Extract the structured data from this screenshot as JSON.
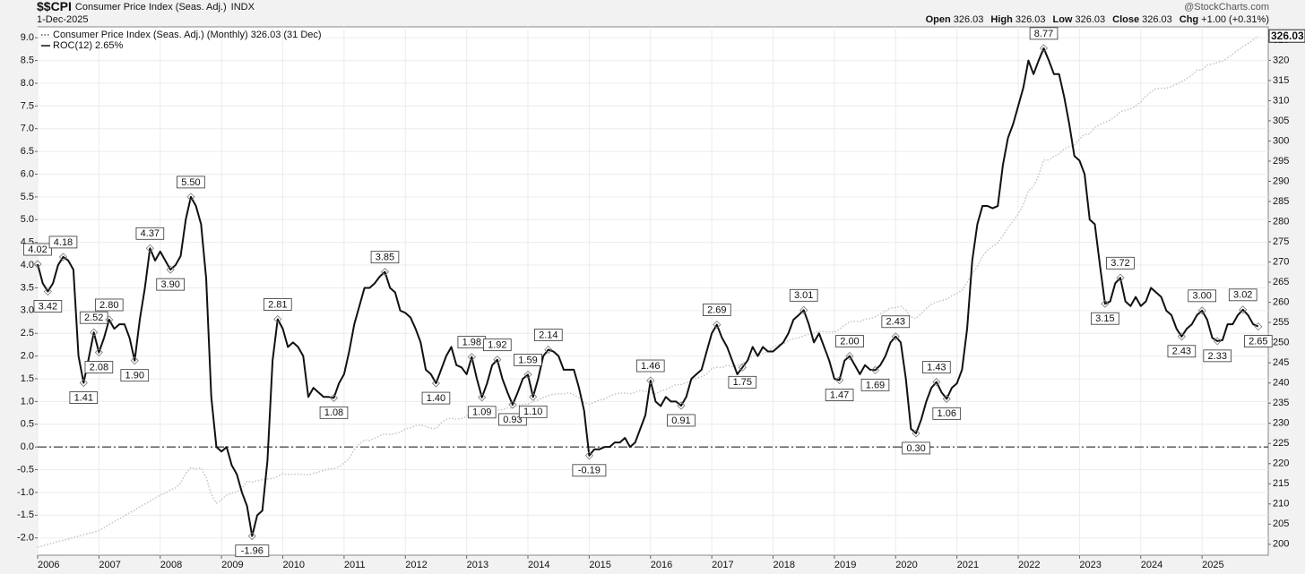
{
  "header": {
    "symbol": "$$CPI",
    "name": "Consumer Price Index (Seas. Adj.)",
    "exchange": "INDX",
    "date": "1-Dec-2025",
    "source": "@StockCharts.com",
    "quote": [
      {
        "label": "Open",
        "value": "326.03"
      },
      {
        "label": "High",
        "value": "326.03"
      },
      {
        "label": "Low",
        "value": "326.03"
      },
      {
        "label": "Close",
        "value": "326.03"
      },
      {
        "label": "Chg",
        "value": "+1.00 (+0.31%)"
      }
    ]
  },
  "chart_data": {
    "type": "line",
    "grid": true,
    "reference_line": 0,
    "xlim": [
      2006,
      2026.08
    ],
    "xticks": [
      2006,
      2007,
      2008,
      2009,
      2010,
      2011,
      2012,
      2013,
      2014,
      2015,
      2016,
      2017,
      2018,
      2019,
      2020,
      2021,
      2022,
      2023,
      2024,
      2025
    ],
    "ylim": [
      -2.38,
      9.24
    ],
    "yticks": [
      {
        "value": -2,
        "label": "-2.0"
      },
      {
        "value": -1.5,
        "label": "-1.5"
      },
      {
        "value": -1,
        "label": "-1.0"
      },
      {
        "value": -0.5,
        "label": "-0.5"
      },
      {
        "value": 0,
        "label": "0.0"
      },
      {
        "value": 0.5,
        "label": "0.5"
      },
      {
        "value": 1,
        "label": "1.0"
      },
      {
        "value": 1.5,
        "label": "1.5"
      },
      {
        "value": 2,
        "label": "2.0"
      },
      {
        "value": 2.5,
        "label": "2.5"
      },
      {
        "value": 3,
        "label": "3.0"
      },
      {
        "value": 3.5,
        "label": "3.5"
      },
      {
        "value": 4,
        "label": "4.0"
      },
      {
        "value": 4.5,
        "label": "4.5"
      },
      {
        "value": 5,
        "label": "5.0"
      },
      {
        "value": 5.5,
        "label": "5.5"
      },
      {
        "value": 6,
        "label": "6.0"
      },
      {
        "value": 6.5,
        "label": "6.5"
      },
      {
        "value": 7,
        "label": "7.0"
      },
      {
        "value": 7.5,
        "label": "7.5"
      },
      {
        "value": 8,
        "label": "8.0"
      },
      {
        "value": 8.5,
        "label": "8.5"
      },
      {
        "value": 9,
        "label": "9.0"
      }
    ],
    "y2lim": [
      197.3,
      328.3
    ],
    "y2ticks": [
      200,
      205,
      210,
      215,
      220,
      225,
      230,
      235,
      240,
      245,
      250,
      255,
      260,
      265,
      270,
      275,
      280,
      285,
      290,
      295,
      300,
      305,
      310,
      315,
      320,
      325
    ],
    "series": [
      {
        "name": "Consumer Price Index (Seas. Adj.) (Monthly) 326.03 (31 Dec)",
        "color": "#c4c4c4",
        "style": "dotted",
        "axis": "y2",
        "last_label": "326.03",
        "values": [
          199.3,
          199.6,
          200.0,
          200.3,
          200.7,
          201.0,
          201.3,
          201.7,
          202.0,
          202.4,
          202.7,
          203.0,
          203.4,
          204.1,
          204.9,
          205.6,
          206.3,
          207.1,
          207.8,
          208.5,
          209.3,
          210.0,
          210.7,
          211.5,
          212.2,
          212.7,
          213.5,
          214.0,
          215.2,
          217.5,
          219.0,
          218.7,
          218.9,
          216.6,
          212.4,
          210.2,
          211.1,
          212.2,
          212.7,
          213.0,
          213.9,
          215.7,
          215.4,
          215.8,
          216.0,
          216.2,
          216.3,
          216.9,
          217.5,
          217.3,
          217.4,
          217.4,
          217.3,
          217.2,
          217.6,
          217.9,
          218.3,
          218.7,
          218.8,
          219.2,
          220.2,
          221.3,
          223.5,
          224.9,
          225.9,
          225.7,
          226.3,
          226.9,
          227.4,
          227.2,
          227.5,
          227.8,
          228.6,
          228.9,
          229.4,
          229.6,
          229.2,
          228.8,
          228.7,
          230.1,
          231.0,
          231.3,
          231.0,
          231.2,
          231.7,
          232.9,
          232.2,
          231.9,
          232.1,
          232.7,
          233.2,
          233.4,
          233.8,
          233.8,
          234.4,
          234.7,
          234.8,
          235.3,
          235.8,
          236.4,
          236.9,
          237.2,
          237.3,
          237.3,
          237.6,
          237.1,
          236.2,
          235.2,
          234.7,
          235.2,
          235.8,
          236.0,
          236.8,
          237.2,
          237.5,
          237.5,
          237.3,
          237.7,
          238.1,
          237.9,
          237.7,
          237.3,
          238.0,
          238.4,
          239.0,
          239.6,
          239.6,
          240.0,
          240.7,
          241.2,
          241.6,
          242.1,
          243.6,
          243.9,
          243.8,
          244.4,
          244.1,
          244.4,
          244.8,
          245.5,
          246.8,
          246.7,
          247.3,
          247.8,
          248.9,
          249.5,
          249.6,
          250.5,
          251.0,
          251.2,
          251.7,
          252.1,
          252.4,
          252.9,
          252.7,
          252.7,
          252.6,
          253.3,
          254.3,
          255.2,
          255.3,
          255.2,
          255.8,
          256.0,
          256.4,
          257.2,
          257.8,
          258.6,
          258.7,
          259.0,
          258.1,
          256.4,
          256.0,
          257.2,
          258.5,
          259.5,
          260.1,
          260.4,
          260.8,
          261.6,
          262.2,
          263.0,
          264.9,
          267.1,
          268.9,
          271.4,
          273.0,
          273.9,
          274.7,
          276.6,
          278.5,
          280.1,
          281.9,
          284.2,
          287.7,
          288.7,
          291.5,
          295.3,
          295.3,
          296.2,
          296.8,
          298.0,
          298.6,
          299.0,
          300.5,
          301.6,
          301.8,
          303.4,
          304.1,
          304.6,
          305.2,
          306.1,
          307.3,
          307.6,
          308.0,
          308.7,
          309.7,
          311.1,
          312.2,
          313.0,
          313.1,
          313.1,
          313.5,
          314.1,
          314.7,
          315.5,
          316.4,
          317.6,
          317.6,
          318.8,
          319.1,
          319.5,
          319.8,
          320.6,
          321.5,
          322.6,
          323.4,
          324.2,
          325.03,
          326.03
        ]
      },
      {
        "name": "ROC(12) 2.65%",
        "color": "#111111",
        "values": [
          4.02,
          3.6,
          3.42,
          3.6,
          4.0,
          4.18,
          4.1,
          3.9,
          2.0,
          1.41,
          1.95,
          2.52,
          2.08,
          2.4,
          2.8,
          2.6,
          2.7,
          2.7,
          2.4,
          1.9,
          2.8,
          3.5,
          4.37,
          4.1,
          4.3,
          4.1,
          3.9,
          4.0,
          4.2,
          5.0,
          5.5,
          5.3,
          4.9,
          3.7,
          1.1,
          0.0,
          -0.1,
          0.0,
          -0.4,
          -0.6,
          -1.0,
          -1.3,
          -1.96,
          -1.5,
          -1.4,
          -0.3,
          1.9,
          2.81,
          2.6,
          2.2,
          2.3,
          2.2,
          2.0,
          1.1,
          1.3,
          1.2,
          1.1,
          1.1,
          1.08,
          1.4,
          1.6,
          2.1,
          2.7,
          3.1,
          3.5,
          3.5,
          3.6,
          3.75,
          3.85,
          3.5,
          3.4,
          3.0,
          2.95,
          2.85,
          2.6,
          2.3,
          1.7,
          1.6,
          1.4,
          1.7,
          2.0,
          2.2,
          1.8,
          1.75,
          1.6,
          1.98,
          1.5,
          1.09,
          1.4,
          1.8,
          1.92,
          1.5,
          1.2,
          0.93,
          1.2,
          1.5,
          1.59,
          1.1,
          1.5,
          2.0,
          2.14,
          2.1,
          2.0,
          1.7,
          1.7,
          1.7,
          1.3,
          0.8,
          -0.19,
          -0.05,
          -0.05,
          0.0,
          0.0,
          0.1,
          0.1,
          0.2,
          0.0,
          0.1,
          0.4,
          0.7,
          1.46,
          1.0,
          0.9,
          1.1,
          1.0,
          1.0,
          0.91,
          1.1,
          1.5,
          1.6,
          1.7,
          2.1,
          2.5,
          2.69,
          2.4,
          2.2,
          1.9,
          1.6,
          1.75,
          1.9,
          2.2,
          2.0,
          2.2,
          2.1,
          2.1,
          2.2,
          2.3,
          2.5,
          2.8,
          2.9,
          3.01,
          2.7,
          2.3,
          2.5,
          2.2,
          1.9,
          1.5,
          1.47,
          1.9,
          2.0,
          1.8,
          1.6,
          1.8,
          1.7,
          1.69,
          1.8,
          2.0,
          2.3,
          2.43,
          2.3,
          1.5,
          0.4,
          0.3,
          0.6,
          1.0,
          1.3,
          1.43,
          1.2,
          1.06,
          1.3,
          1.4,
          1.7,
          2.6,
          4.1,
          4.9,
          5.3,
          5.3,
          5.25,
          5.3,
          6.2,
          6.8,
          7.1,
          7.5,
          7.9,
          8.5,
          8.2,
          8.5,
          8.77,
          8.5,
          8.2,
          8.2,
          7.7,
          7.1,
          6.4,
          6.3,
          6.0,
          5.0,
          4.9,
          4.0,
          3.15,
          3.2,
          3.6,
          3.72,
          3.2,
          3.1,
          3.3,
          3.1,
          3.2,
          3.5,
          3.4,
          3.3,
          3.0,
          2.9,
          2.6,
          2.43,
          2.6,
          2.7,
          2.9,
          3.0,
          2.8,
          2.4,
          2.33,
          2.35,
          2.7,
          2.7,
          2.9,
          3.02,
          2.9,
          2.7,
          2.65
        ],
        "value_labels": [
          "4.02",
          null,
          "3.42",
          null,
          null,
          "4.18",
          null,
          null,
          null,
          "1.41",
          null,
          "2.52",
          "2.08",
          null,
          "2.80",
          null,
          null,
          null,
          null,
          "1.90",
          null,
          null,
          "4.37",
          null,
          null,
          null,
          "3.90",
          null,
          null,
          null,
          "5.50",
          null,
          null,
          null,
          null,
          null,
          null,
          null,
          null,
          null,
          null,
          null,
          "-1.96",
          null,
          null,
          null,
          null,
          "2.81",
          null,
          null,
          null,
          null,
          null,
          null,
          null,
          null,
          null,
          null,
          "1.08",
          null,
          null,
          null,
          null,
          null,
          null,
          null,
          null,
          null,
          "3.85",
          null,
          null,
          null,
          null,
          null,
          null,
          null,
          null,
          null,
          "1.40",
          null,
          null,
          null,
          null,
          null,
          null,
          "1.98",
          null,
          "1.09",
          null,
          null,
          "1.92",
          null,
          null,
          "0.93",
          null,
          null,
          "1.59",
          "1.10",
          null,
          null,
          "2.14",
          null,
          null,
          null,
          null,
          null,
          null,
          null,
          "-0.19",
          null,
          null,
          null,
          null,
          null,
          null,
          null,
          null,
          null,
          null,
          null,
          "1.46",
          null,
          null,
          null,
          null,
          null,
          "0.91",
          null,
          null,
          null,
          null,
          null,
          null,
          "2.69",
          null,
          null,
          null,
          null,
          "1.75",
          null,
          null,
          null,
          null,
          null,
          null,
          null,
          null,
          null,
          null,
          null,
          "3.01",
          null,
          null,
          null,
          null,
          null,
          null,
          "1.47",
          null,
          "2.00",
          null,
          null,
          null,
          null,
          "1.69",
          null,
          null,
          null,
          "2.43",
          null,
          null,
          null,
          "0.30",
          null,
          null,
          null,
          "1.43",
          null,
          "1.06",
          null,
          null,
          null,
          null,
          null,
          null,
          null,
          null,
          null,
          null,
          null,
          null,
          null,
          null,
          null,
          null,
          null,
          null,
          "8.77",
          null,
          null,
          null,
          null,
          null,
          null,
          null,
          null,
          null,
          null,
          null,
          "3.15",
          null,
          null,
          "3.72",
          null,
          null,
          null,
          null,
          null,
          null,
          null,
          null,
          null,
          null,
          null,
          "2.43",
          null,
          null,
          null,
          "3.00",
          null,
          null,
          "2.33",
          null,
          null,
          null,
          null,
          "3.02",
          null,
          null,
          "2.65"
        ]
      }
    ]
  }
}
